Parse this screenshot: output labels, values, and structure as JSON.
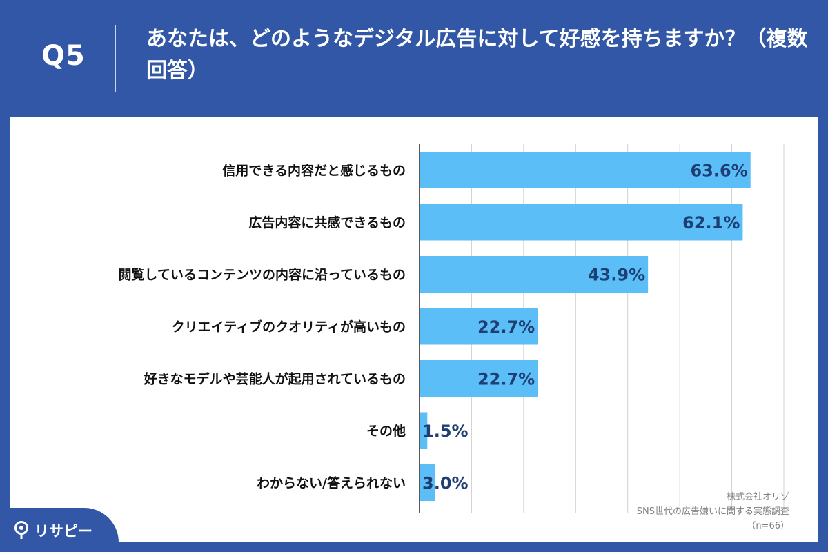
{
  "header": {
    "question_label": "Q5",
    "question_text": "あなたは、どのようなデジタル広告に対して好感を持ちますか？（複数回答）"
  },
  "chart_data": {
    "type": "bar",
    "orientation": "horizontal",
    "categories": [
      "信用できる内容だと感じるもの",
      "広告内容に共感できるもの",
      "閲覧しているコンテンツの内容に沿っているもの",
      "クリエイティブのクオリティが高いもの",
      "好きなモデルや芸能人が起用されているもの",
      "その他",
      "わからない/答えられない"
    ],
    "values": [
      63.6,
      62.1,
      43.9,
      22.7,
      22.7,
      1.5,
      3.0
    ],
    "value_labels": [
      "63.6%",
      "62.1%",
      "43.9%",
      "22.7%",
      "22.7%",
      "1.5%",
      "3.0%"
    ],
    "unit": "%",
    "xlim": [
      0,
      70
    ],
    "grid": true,
    "bar_color": "#5bbef7",
    "value_label_color": "#1d3f74"
  },
  "source": {
    "company": "株式会社オリゾ",
    "survey": "SNS世代の広告嫌いに関する実態調査",
    "sample": "（n=66）"
  },
  "branding": {
    "logo_text": "リサピー",
    "logo_icon": "pin-icon"
  },
  "colors": {
    "background": "#3157a6",
    "panel": "#ffffff",
    "bar": "#5bbef7",
    "value_text": "#1d3f74"
  }
}
